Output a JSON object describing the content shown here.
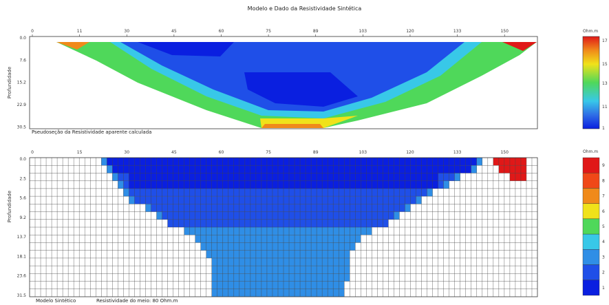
{
  "page_title": "Modelo e Dado da Resistividade Sintética",
  "chart_data": [
    {
      "type": "heatmap",
      "title": "",
      "ylabel": "Profundidade",
      "x_ticks": [
        "0",
        "11",
        "30",
        "45",
        "60",
        "75",
        "89",
        "103",
        "120",
        "133",
        "150"
      ],
      "y_ticks": [
        "0.0",
        "7.6",
        "15.2",
        "22.9",
        "30.5"
      ],
      "colorbar_unit": "Ohm.m",
      "colorbar_ticks": [
        "17",
        "15",
        "13",
        "11",
        "1"
      ],
      "caption": "Pseudoseção da Resistividade aparente calculada"
    },
    {
      "type": "heatmap",
      "title": "",
      "ylabel": "Profundidade",
      "x_ticks": [
        "0",
        "15",
        "30",
        "45",
        "60",
        "75",
        "89",
        "103",
        "120",
        "133",
        "150"
      ],
      "y_ticks": [
        "0.0",
        "2.5",
        "5.6",
        "9.2",
        "13.7",
        "18.1",
        "23.6",
        "31.5"
      ],
      "colorbar_unit": "Ohm.m",
      "colorbar_ticks": [
        "9",
        "8",
        "7",
        "6",
        "5",
        "4",
        "3",
        "2",
        "1"
      ],
      "caption_left": "Modelo Sintético",
      "caption_right": "Resistividade do meio: 80 Ohm.m"
    }
  ],
  "colors": {
    "deep_blue": "#0a1fe0",
    "blue": "#1f4fe8",
    "light_blue": "#2f8ee6",
    "cyan": "#38c8e8",
    "green": "#4fd85a",
    "yellow": "#f0e21a",
    "orange": "#f08a1a",
    "red": "#e01818"
  }
}
